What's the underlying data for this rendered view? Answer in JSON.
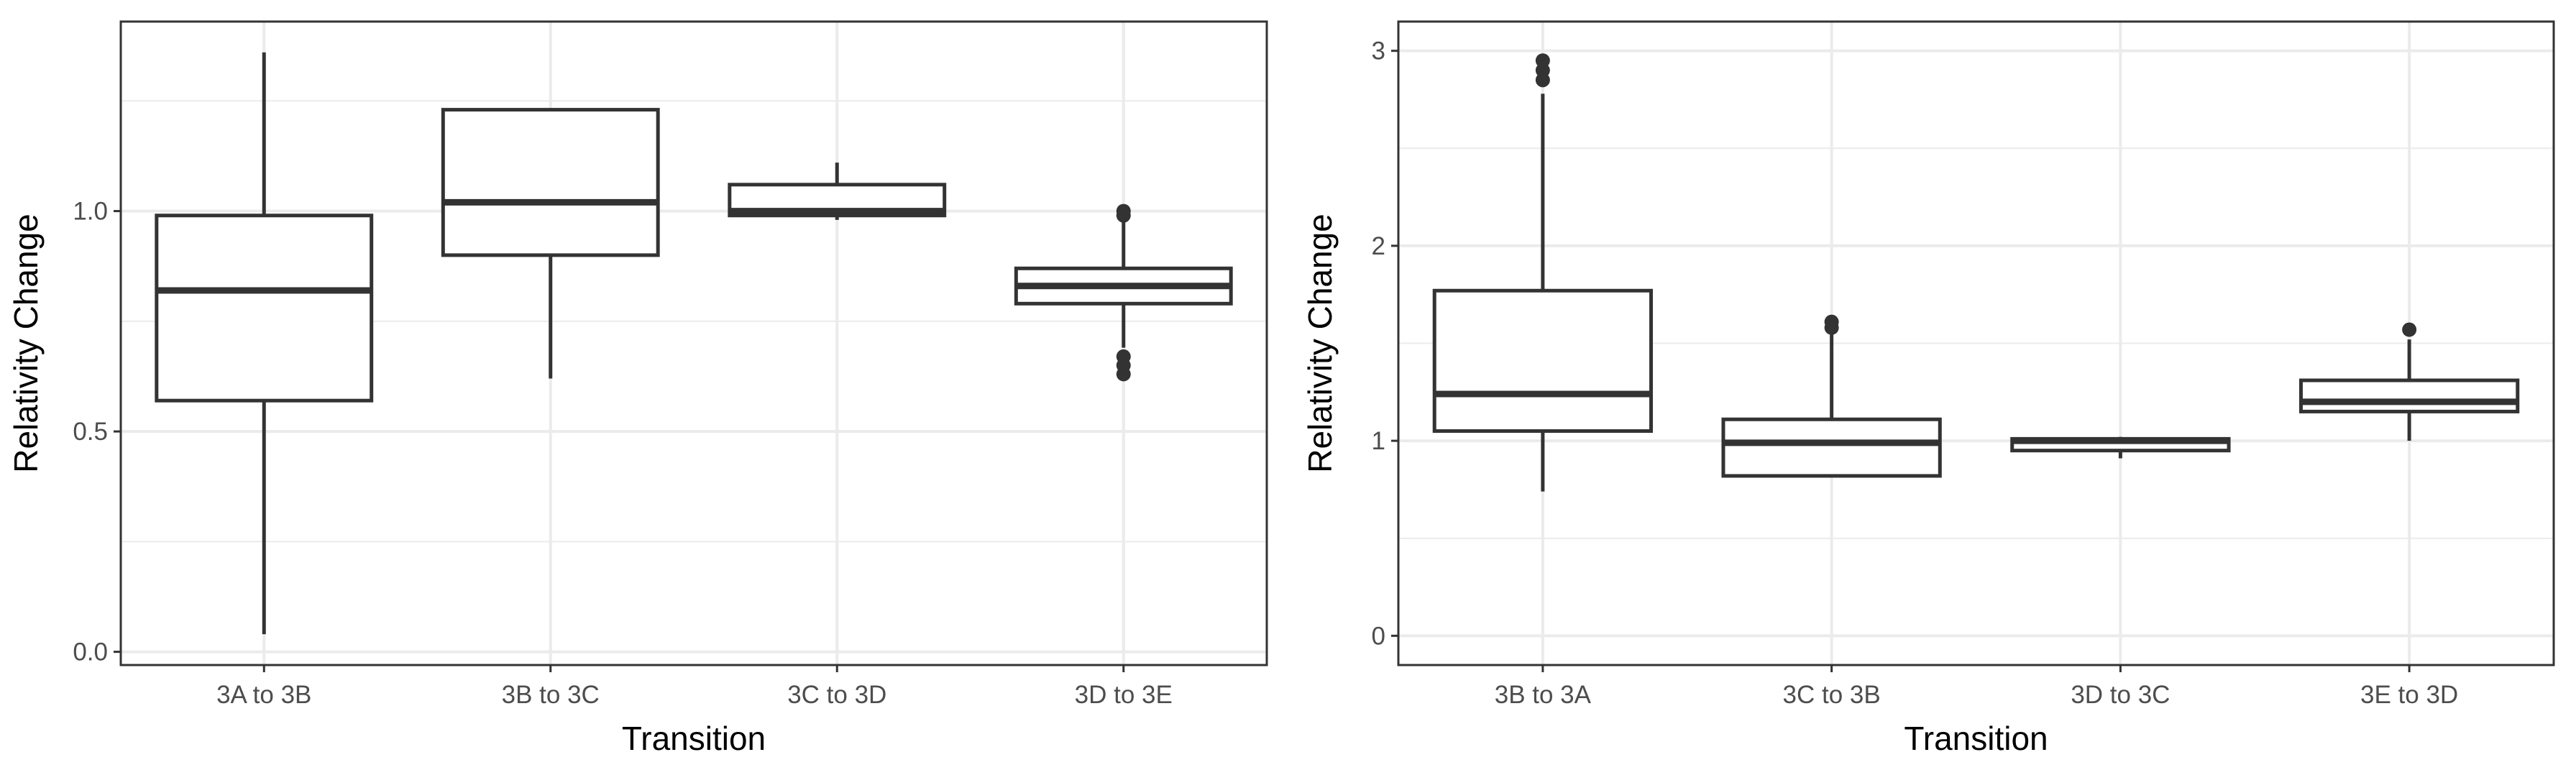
{
  "chart_data": [
    {
      "type": "box",
      "xlabel": "Transition",
      "ylabel": "Relativity Change",
      "ylim": [
        -0.03,
        1.43
      ],
      "y_ticks": [
        "0.0",
        "0.5",
        "1.0"
      ],
      "y_tick_values": [
        0.0,
        0.5,
        1.0
      ],
      "grid": true,
      "categories": [
        "3A to 3B",
        "3B to 3C",
        "3C to 3D",
        "3D to 3E"
      ],
      "boxes": [
        {
          "category": "3A to 3B",
          "whisker_low": 0.04,
          "q1": 0.57,
          "median": 0.82,
          "q3": 0.99,
          "whisker_high": 1.36,
          "outliers": []
        },
        {
          "category": "3B to 3C",
          "whisker_low": 0.62,
          "q1": 0.9,
          "median": 1.02,
          "q3": 1.23,
          "whisker_high": 1.23,
          "outliers": []
        },
        {
          "category": "3C to 3D",
          "whisker_low": 0.98,
          "q1": 0.99,
          "median": 1.0,
          "q3": 1.06,
          "whisker_high": 1.11,
          "outliers": []
        },
        {
          "category": "3D to 3E",
          "whisker_low": 0.69,
          "q1": 0.79,
          "median": 0.83,
          "q3": 0.87,
          "whisker_high": 0.99,
          "outliers": [
            1.0,
            0.99,
            0.67,
            0.65,
            0.63
          ]
        }
      ]
    },
    {
      "type": "box",
      "xlabel": "Transition",
      "ylabel": "Relativity Change",
      "ylim": [
        -0.15,
        3.15
      ],
      "y_ticks": [
        "0",
        "1",
        "2",
        "3"
      ],
      "y_tick_values": [
        0,
        1,
        2,
        3
      ],
      "grid": true,
      "categories": [
        "3B to 3A",
        "3C to 3B",
        "3D to 3C",
        "3E to 3D"
      ],
      "boxes": [
        {
          "category": "3B to 3A",
          "whisker_low": 0.74,
          "q1": 1.05,
          "median": 1.24,
          "q3": 1.77,
          "whisker_high": 2.78,
          "outliers": [
            2.85,
            2.9,
            2.95
          ]
        },
        {
          "category": "3C to 3B",
          "whisker_low": 0.82,
          "q1": 0.82,
          "median": 0.99,
          "q3": 1.11,
          "whisker_high": 1.55,
          "outliers": [
            1.58,
            1.61
          ]
        },
        {
          "category": "3D to 3C",
          "whisker_low": 0.91,
          "q1": 0.95,
          "median": 1.0,
          "q3": 1.01,
          "whisker_high": 1.02,
          "outliers": []
        },
        {
          "category": "3E to 3D",
          "whisker_low": 1.0,
          "q1": 1.15,
          "median": 1.2,
          "q3": 1.31,
          "whisker_high": 1.52,
          "outliers": [
            1.57
          ]
        }
      ]
    }
  ]
}
